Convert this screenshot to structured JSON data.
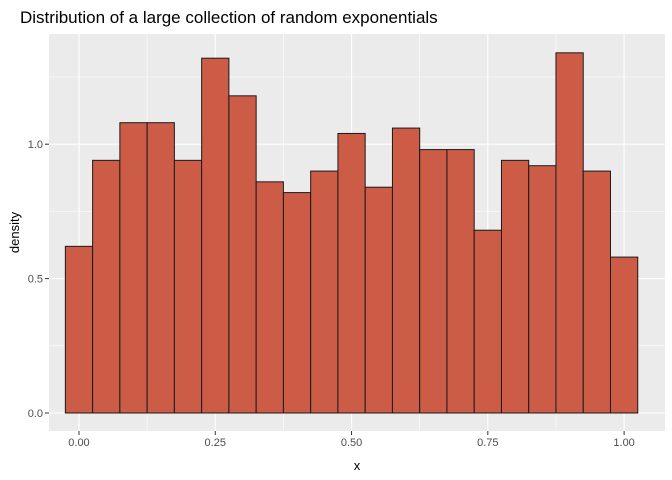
{
  "chart_data": {
    "type": "bar",
    "title": "Distribution of a large collection of random exponentials",
    "xlabel": "x",
    "ylabel": "density",
    "xlim": [
      -0.055,
      1.075
    ],
    "ylim": [
      -0.067,
      1.41
    ],
    "x_ticks": [
      0.0,
      0.25,
      0.5,
      0.75,
      1.0
    ],
    "x_tick_labels": [
      "0.00",
      "0.25",
      "0.50",
      "0.75",
      "1.00"
    ],
    "y_ticks": [
      0.0,
      0.5,
      1.0
    ],
    "y_tick_labels": [
      "0.0",
      "0.5",
      "1.0"
    ],
    "bin_width": 0.05,
    "bin_start": -0.025,
    "values": [
      0.62,
      0.94,
      1.08,
      1.08,
      0.94,
      1.32,
      1.18,
      0.86,
      0.82,
      0.9,
      1.04,
      0.84,
      1.06,
      0.98,
      0.98,
      0.68,
      0.94,
      0.92,
      1.34,
      0.9,
      0.58
    ],
    "grid": true,
    "colors": {
      "bar_fill": "#CD5C47",
      "bar_outline": "#1A1A1A",
      "panel": "#EBEBEB",
      "grid": "#FFFFFF"
    }
  }
}
